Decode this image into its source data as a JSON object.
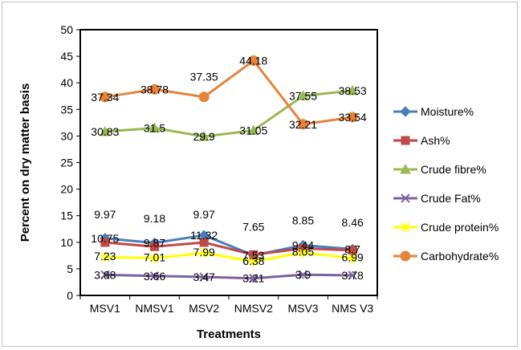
{
  "chart_data": {
    "type": "line",
    "title": "",
    "xlabel": "Treatments",
    "ylabel": "Percent on dry matter basis",
    "ylim": [
      0,
      50
    ],
    "ytick_step": 5,
    "grid": false,
    "legend_position": "right",
    "categories": [
      "MSV1",
      "NMSV1",
      "MSV2",
      "NMSV2",
      "MSV3",
      "NMS V3"
    ],
    "series": [
      {
        "name": "Moisture%",
        "color": "#4a7ebb",
        "marker": "diamond",
        "values": [
          10.75,
          9.87,
          11.32,
          7.53,
          9.44,
          8.7
        ],
        "labels": [
          "10.75",
          "9.87",
          "11.32",
          "7.53",
          "9.44",
          "8.7"
        ]
      },
      {
        "name": "Ash%",
        "color": "#be4b48",
        "marker": "square",
        "values": [
          9.97,
          9.18,
          9.97,
          7.65,
          8.85,
          8.46
        ],
        "labels": [
          "9.97",
          "9.18",
          "9.97",
          "7.65",
          "8.85",
          "8.46"
        ]
      },
      {
        "name": "Crude fibre%",
        "color": "#98b954",
        "marker": "triangle",
        "values": [
          30.83,
          31.5,
          29.9,
          31.05,
          37.55,
          38.53
        ],
        "labels": [
          "30.83",
          "31.5",
          "29.9",
          "31.05",
          "37.55",
          "38.53"
        ]
      },
      {
        "name": "Crude Fat%",
        "color": "#7d60a0",
        "marker": "x",
        "values": [
          3.88,
          3.66,
          3.47,
          3.21,
          3.9,
          3.78
        ],
        "labels": [
          "3.88",
          "3.66",
          "3.47",
          "3.21",
          "3.9",
          "3.78"
        ]
      },
      {
        "name": "Crude protein%",
        "color": "#ffff00",
        "marker": "star",
        "values": [
          7.23,
          7.01,
          7.99,
          6.38,
          8.05,
          6.99
        ],
        "labels": [
          "7.23",
          "7.01",
          "7.99",
          "6.38",
          "8.05",
          "6.99"
        ]
      },
      {
        "name": "Carbohydrate%",
        "color": "#e6843a",
        "marker": "circle",
        "values": [
          37.34,
          38.78,
          37.35,
          44.18,
          32.21,
          33.54
        ],
        "labels": [
          "37.34",
          "38.78",
          "37.35",
          "44.18",
          "32.21",
          "33.54"
        ]
      }
    ]
  }
}
